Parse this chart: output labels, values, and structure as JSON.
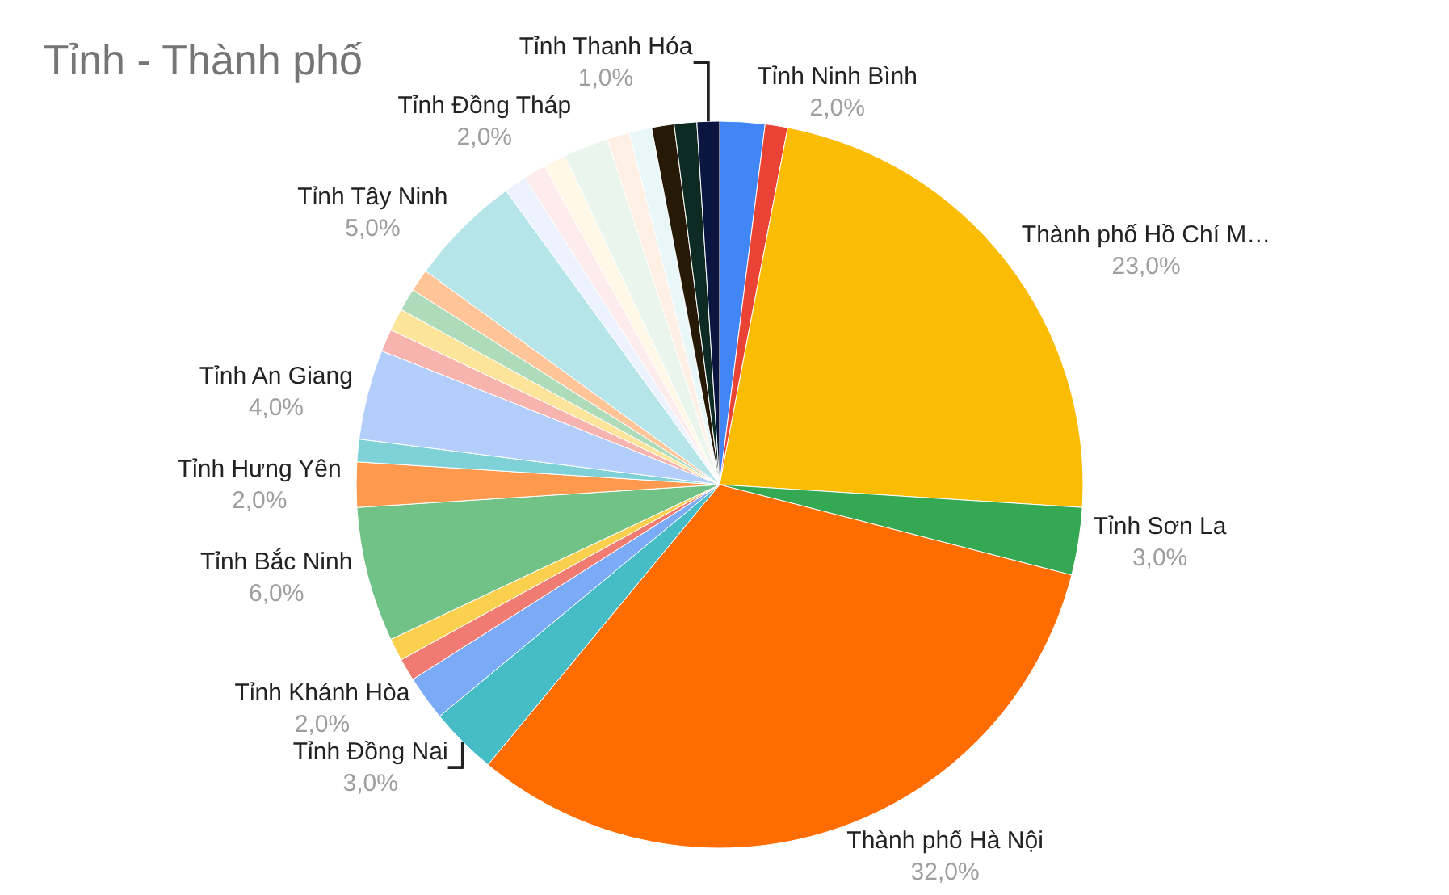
{
  "chart_data": {
    "type": "pie",
    "title": "Tỉnh - Thành phố",
    "legend": false,
    "categories": [
      "Tỉnh Ninh Bình",
      null,
      "Thành phố Hồ Chí M…",
      "Tỉnh Sơn La",
      "Thành phố Hà Nội",
      "Tỉnh Đồng Nai",
      "Tỉnh Khánh Hòa",
      null,
      null,
      "Tỉnh Bắc Ninh",
      "Tỉnh Hưng Yên",
      null,
      "Tỉnh An Giang",
      null,
      null,
      null,
      null,
      "Tỉnh Tây Ninh",
      null,
      null,
      null,
      "Tỉnh Đồng Tháp",
      null,
      null,
      null,
      null,
      "Tỉnh Thanh Hóa"
    ],
    "values": [
      2,
      1,
      23,
      3,
      32,
      3,
      2,
      1,
      1,
      6,
      2,
      1,
      4,
      1,
      1,
      1,
      1,
      5,
      1,
      1,
      1,
      2,
      1,
      1,
      1,
      1,
      1
    ],
    "value_labels": [
      "2,0%",
      null,
      "23,0%",
      "3,0%",
      "32,0%",
      "3,0%",
      "2,0%",
      null,
      null,
      "6,0%",
      "2,0%",
      null,
      "4,0%",
      null,
      null,
      null,
      null,
      "5,0%",
      null,
      null,
      null,
      "2,0%",
      null,
      null,
      null,
      null,
      "1,0%"
    ],
    "colors": [
      "#4285f4",
      "#ea4335",
      "#fbbc04",
      "#34a853",
      "#ff6d01",
      "#46bdc6",
      "#7baaf7",
      "#f07b72",
      "#fcd04f",
      "#71c287",
      "#ff994d",
      "#7ed1d7",
      "#b3cefb",
      "#f7b4ae",
      "#fde49b",
      "#aedcba",
      "#ffc599",
      "#b5e5e8",
      "#ecf3fe",
      "#fdeceb",
      "#fff8e6",
      "#eaf6ed",
      "#fff0e6",
      "#e9f7f8",
      "#261a06",
      "#0d2b22",
      "#0b1640"
    ]
  }
}
